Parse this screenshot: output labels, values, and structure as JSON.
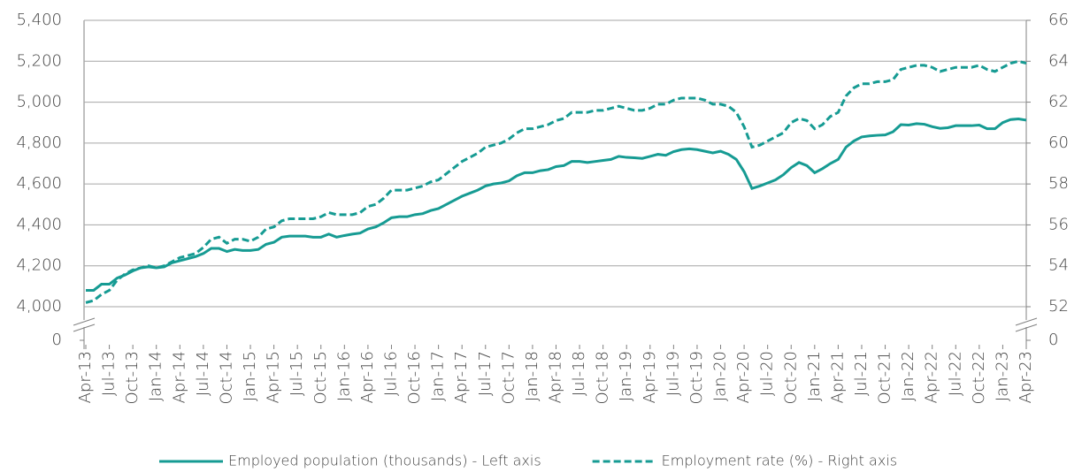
{
  "chart_data": {
    "type": "line",
    "categories": [
      "Apr-13",
      null,
      null,
      "Jul-13",
      null,
      null,
      "Oct-13",
      null,
      null,
      "Jan-14",
      null,
      null,
      "Apr-14",
      null,
      null,
      "Jul-14",
      null,
      null,
      "Oct-14",
      null,
      null,
      "Jan-15",
      null,
      null,
      "Apr-15",
      null,
      null,
      "Jul-15",
      null,
      null,
      "Oct-15",
      null,
      null,
      "Jan-16",
      null,
      null,
      "Apr-16",
      null,
      null,
      "Jul-16",
      null,
      null,
      "Oct-16",
      null,
      null,
      "Jan-17",
      null,
      null,
      "Apr-17",
      null,
      null,
      "Jul-17",
      null,
      null,
      "Oct-17",
      null,
      null,
      "Jan-18",
      null,
      null,
      "Apr-18",
      null,
      null,
      "Jul-18",
      null,
      null,
      "Oct-18",
      null,
      null,
      "Jan-19",
      null,
      null,
      "Apr-19",
      null,
      null,
      "Jul-19",
      null,
      null,
      "Oct-19",
      null,
      null,
      "Jan-20",
      null,
      null,
      "Apr-20",
      null,
      null,
      "Jul-20",
      null,
      null,
      "Oct-20",
      null,
      null,
      "Jan-21",
      null,
      null,
      "Apr-21",
      null,
      null,
      "Jul-21",
      null,
      null,
      "Oct-21",
      null,
      null,
      "Jan-22",
      null,
      null,
      "Apr-22",
      null,
      null,
      "Jul-22",
      null,
      null,
      "Oct-22",
      null,
      null,
      "Jan-23",
      null,
      null,
      "Apr-23"
    ],
    "series": [
      {
        "name": "Employed population (thousands) - Left axis",
        "color": "#169b93",
        "dash": false,
        "axis": "y",
        "values": [
          4080,
          4080,
          4110,
          4110,
          4140,
          4155,
          4175,
          4190,
          4195,
          4190,
          4195,
          4215,
          4225,
          4235,
          4245,
          4260,
          4285,
          4285,
          4270,
          4280,
          4275,
          4275,
          4280,
          4305,
          4315,
          4340,
          4345,
          4345,
          4345,
          4340,
          4340,
          4355,
          4340,
          4348,
          4355,
          4360,
          4380,
          4390,
          4410,
          4435,
          4440,
          4440,
          4450,
          4455,
          4470,
          4480,
          4500,
          4520,
          4540,
          4555,
          4570,
          4590,
          4600,
          4605,
          4615,
          4640,
          4655,
          4655,
          4665,
          4670,
          4685,
          4690,
          4710,
          4710,
          4705,
          4710,
          4715,
          4720,
          4735,
          4730,
          4728,
          4725,
          4735,
          4745,
          4740,
          4758,
          4768,
          4772,
          4768,
          4760,
          4752,
          4760,
          4745,
          4720,
          4660,
          4578,
          4590,
          4605,
          4620,
          4645,
          4680,
          4705,
          4690,
          4655,
          4675,
          4700,
          4720,
          4780,
          4810,
          4830,
          4835,
          4838,
          4840,
          4855,
          4890,
          4888,
          4895,
          4892,
          4880,
          4872,
          4875,
          4885,
          4885,
          4885,
          4888,
          4870,
          4870,
          4900,
          4915,
          4918,
          4912
        ]
      },
      {
        "name": "Employment rate (%) - Right axis",
        "color": "#169b93",
        "dash": true,
        "axis": "y2",
        "values": [
          52.2,
          52.3,
          52.6,
          52.8,
          53.3,
          53.6,
          53.8,
          53.9,
          54.0,
          53.9,
          54.0,
          54.2,
          54.4,
          54.5,
          54.6,
          54.9,
          55.3,
          55.4,
          55.1,
          55.3,
          55.3,
          55.2,
          55.4,
          55.8,
          55.9,
          56.2,
          56.3,
          56.3,
          56.3,
          56.3,
          56.4,
          56.6,
          56.5,
          56.5,
          56.5,
          56.6,
          56.9,
          57.0,
          57.3,
          57.7,
          57.7,
          57.7,
          57.8,
          57.9,
          58.1,
          58.2,
          58.5,
          58.8,
          59.1,
          59.3,
          59.5,
          59.8,
          59.9,
          60.0,
          60.2,
          60.5,
          60.7,
          60.7,
          60.8,
          60.9,
          61.1,
          61.2,
          61.5,
          61.5,
          61.5,
          61.6,
          61.6,
          61.7,
          61.8,
          61.7,
          61.6,
          61.6,
          61.7,
          61.9,
          61.9,
          62.1,
          62.2,
          62.2,
          62.2,
          62.1,
          61.9,
          61.9,
          61.8,
          61.5,
          60.8,
          59.8,
          59.9,
          60.1,
          60.3,
          60.5,
          61.0,
          61.2,
          61.1,
          60.7,
          60.9,
          61.3,
          61.5,
          62.3,
          62.7,
          62.9,
          62.9,
          63.0,
          63.0,
          63.1,
          63.6,
          63.7,
          63.8,
          63.8,
          63.7,
          63.5,
          63.6,
          63.7,
          63.7,
          63.7,
          63.8,
          63.6,
          63.5,
          63.7,
          63.9,
          64.0,
          63.9
        ]
      }
    ],
    "ylim": [
      0,
      5400
    ],
    "y_break": [
      0,
      4000
    ],
    "yticks": [
      0,
      {
        "value": 4000,
        "label": "4,000"
      },
      {
        "value": 4200,
        "label": "4,200"
      },
      {
        "value": 4400,
        "label": "4,400"
      },
      {
        "value": 4600,
        "label": "4,600"
      },
      {
        "value": 4800,
        "label": "4,800"
      },
      {
        "value": 5000,
        "label": "5,000"
      },
      {
        "value": 5200,
        "label": "5,200"
      },
      {
        "value": 5400,
        "label": "5,400"
      }
    ],
    "y2lim": [
      0,
      66
    ],
    "y2_break": [
      0,
      52
    ],
    "y2ticks": [
      0,
      52,
      54,
      56,
      58,
      60,
      62,
      64,
      66
    ],
    "grid": true,
    "legend": "bottom"
  }
}
